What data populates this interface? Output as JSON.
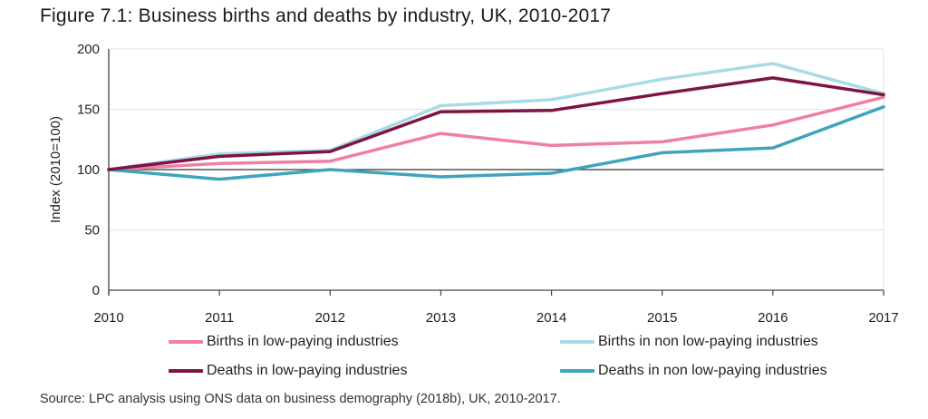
{
  "figure": {
    "title": "Figure 7.1: Business births and deaths by industry, UK, 2010-2017",
    "source": "Source: LPC analysis using ONS data on business demography (2018b), UK, 2010-2017."
  },
  "chart_data": {
    "type": "line",
    "title": "Figure 7.1: Business births and deaths by industry, UK, 2010-2017",
    "xlabel": "",
    "ylabel": "Index (2010=100)",
    "x": [
      "2010",
      "2011",
      "2012",
      "2013",
      "2014",
      "2015",
      "2016",
      "2017"
    ],
    "ylim": [
      0,
      200
    ],
    "yticks": [
      0,
      50,
      100,
      150,
      200
    ],
    "grid": true,
    "reference_line": 100,
    "legend_position": "bottom",
    "series": [
      {
        "name": "Births in low-paying industries",
        "color": "#ef7fa4",
        "values": [
          100,
          105,
          107,
          130,
          120,
          123,
          137,
          160
        ]
      },
      {
        "name": "Births in non low-paying industries",
        "color": "#a9dbe6",
        "values": [
          100,
          113,
          116,
          153,
          158,
          175,
          188,
          163
        ]
      },
      {
        "name": "Deaths in low-paying industries",
        "color": "#7d1444",
        "values": [
          100,
          111,
          115,
          148,
          149,
          163,
          176,
          162
        ]
      },
      {
        "name": "Deaths in non low-paying industries",
        "color": "#40a4bd",
        "values": [
          100,
          92,
          100,
          94,
          97,
          114,
          118,
          152
        ]
      }
    ]
  }
}
